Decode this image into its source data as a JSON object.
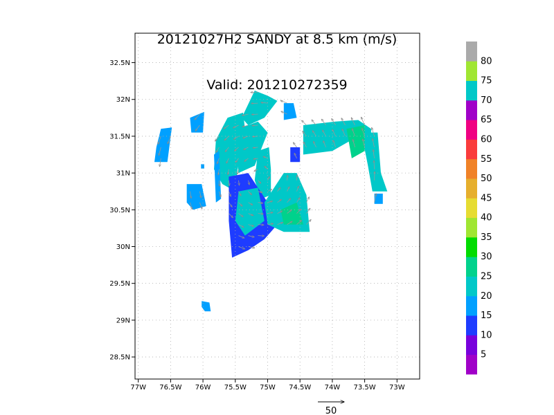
{
  "chart_data": {
    "type": "heatmap",
    "title": "20121027H2 SANDY at 8.5 km (m/s)",
    "subtitle": "Valid: 201210272359",
    "xlabel": "",
    "ylabel": "",
    "xlim": [
      -77.05,
      -72.65
    ],
    "ylim": [
      28.2,
      32.9
    ],
    "x_ticks": [
      -77,
      -76.5,
      -76,
      -75.5,
      -75,
      -74.5,
      -74,
      -73.5,
      -73
    ],
    "x_tick_labels": [
      "77W",
      "76.5W",
      "76W",
      "75.5W",
      "75W",
      "74.5W",
      "74W",
      "73.5W",
      "73W"
    ],
    "y_ticks": [
      28.5,
      29,
      29.5,
      30,
      30.5,
      31,
      31.5,
      32,
      32.5
    ],
    "y_tick_labels": [
      "28.5N",
      "29N",
      "29.5N",
      "30N",
      "30.5N",
      "31N",
      "31.5N",
      "32N",
      "32.5N"
    ],
    "grid": true,
    "vector_reference": {
      "label": "50",
      "value": 50,
      "units": "m/s"
    },
    "colorbar": {
      "labels": [
        "5",
        "10",
        "15",
        "20",
        "25",
        "30",
        "35",
        "40",
        "45",
        "50",
        "55",
        "60",
        "65",
        "70",
        "75",
        "80"
      ],
      "colors": [
        "#a000c8",
        "#7800dc",
        "#1e3cff",
        "#00a0ff",
        "#00c8c8",
        "#00d28c",
        "#00dc00",
        "#a0e632",
        "#e6dc32",
        "#e6af2d",
        "#f08228",
        "#fa3c3c",
        "#f00082",
        "#a000c8",
        "#00c8c8",
        "#a0e632",
        "#aaaaaa"
      ]
    },
    "regions": [
      {
        "name": "core-west-high",
        "value": 70,
        "polygon": [
          [
            -75.62,
            31.75
          ],
          [
            -75.38,
            31.82
          ],
          [
            -75.35,
            31.6
          ],
          [
            -75.45,
            31.2
          ],
          [
            -75.5,
            30.75
          ],
          [
            -75.7,
            30.85
          ],
          [
            -75.83,
            31.05
          ],
          [
            -75.8,
            31.45
          ]
        ]
      },
      {
        "name": "core-north-high",
        "value": 70,
        "polygon": [
          [
            -75.4,
            31.75
          ],
          [
            -75.2,
            32.12
          ],
          [
            -75.0,
            32.05
          ],
          [
            -74.85,
            31.98
          ],
          [
            -75.05,
            31.75
          ],
          [
            -75.3,
            31.65
          ]
        ]
      },
      {
        "name": "core-east-high",
        "value": 70,
        "polygon": [
          [
            -75.15,
            31.3
          ],
          [
            -74.98,
            31.35
          ],
          [
            -74.95,
            31.05
          ],
          [
            -74.95,
            30.7
          ],
          [
            -75.1,
            30.65
          ],
          [
            -75.2,
            30.9
          ]
        ]
      },
      {
        "name": "west-strip",
        "value": 16,
        "polygon": [
          [
            -75.83,
            31.25
          ],
          [
            -75.75,
            31.3
          ],
          [
            -75.72,
            30.65
          ],
          [
            -75.8,
            30.6
          ]
        ]
      },
      {
        "name": "core-center",
        "value": 20,
        "polygon": [
          [
            -75.45,
            31.6
          ],
          [
            -75.15,
            31.7
          ],
          [
            -75.0,
            31.55
          ],
          [
            -75.2,
            31.1
          ],
          [
            -75.45,
            31.0
          ],
          [
            -75.5,
            31.3
          ]
        ]
      },
      {
        "name": "south-lobe",
        "value": 13,
        "polygon": [
          [
            -75.6,
            30.95
          ],
          [
            -75.3,
            31.0
          ],
          [
            -75.0,
            30.6
          ],
          [
            -74.85,
            30.3
          ],
          [
            -75.05,
            30.1
          ],
          [
            -75.3,
            29.95
          ],
          [
            -75.55,
            29.85
          ],
          [
            -75.6,
            30.35
          ]
        ]
      },
      {
        "name": "south-lobe-inner",
        "value": 21,
        "polygon": [
          [
            -75.45,
            30.75
          ],
          [
            -75.15,
            30.8
          ],
          [
            -75.05,
            30.35
          ],
          [
            -75.35,
            30.15
          ],
          [
            -75.5,
            30.35
          ]
        ]
      },
      {
        "name": "eastern-arm",
        "value": 22,
        "polygon": [
          [
            -75.05,
            30.6
          ],
          [
            -74.75,
            31.0
          ],
          [
            -74.55,
            31.0
          ],
          [
            -74.4,
            30.7
          ],
          [
            -74.35,
            30.2
          ],
          [
            -74.75,
            30.2
          ],
          [
            -75.0,
            30.3
          ]
        ]
      },
      {
        "name": "eastern-arm-core",
        "value": 27,
        "polygon": [
          [
            -74.8,
            30.5
          ],
          [
            -74.55,
            30.6
          ],
          [
            -74.45,
            30.3
          ],
          [
            -74.75,
            30.3
          ]
        ]
      },
      {
        "name": "band-top",
        "value": 20,
        "polygon": [
          [
            -74.45,
            31.65
          ],
          [
            -73.95,
            31.7
          ],
          [
            -73.6,
            31.72
          ],
          [
            -73.4,
            31.6
          ],
          [
            -73.4,
            31.3
          ],
          [
            -73.7,
            31.45
          ],
          [
            -74.0,
            31.3
          ],
          [
            -74.45,
            31.25
          ]
        ]
      },
      {
        "name": "band-right",
        "value": 24,
        "polygon": [
          [
            -73.55,
            31.55
          ],
          [
            -73.3,
            31.55
          ],
          [
            -73.25,
            31.0
          ],
          [
            -73.15,
            30.75
          ],
          [
            -73.38,
            30.75
          ],
          [
            -73.45,
            31.1
          ]
        ]
      },
      {
        "name": "band-core",
        "value": 27,
        "polygon": [
          [
            -73.78,
            31.6
          ],
          [
            -73.5,
            31.65
          ],
          [
            -73.5,
            31.3
          ],
          [
            -73.7,
            31.2
          ]
        ]
      },
      {
        "name": "west-cell",
        "value": 15,
        "polygon": [
          [
            -76.25,
            30.85
          ],
          [
            -76.02,
            30.85
          ],
          [
            -75.95,
            30.55
          ],
          [
            -76.15,
            30.5
          ],
          [
            -76.25,
            30.6
          ]
        ]
      },
      {
        "name": "far-west-cell",
        "value": 15,
        "polygon": [
          [
            -76.65,
            31.6
          ],
          [
            -76.48,
            31.62
          ],
          [
            -76.55,
            31.15
          ],
          [
            -76.75,
            31.15
          ],
          [
            -76.72,
            31.35
          ]
        ]
      },
      {
        "name": "nw-cell",
        "value": 19,
        "polygon": [
          [
            -76.2,
            31.75
          ],
          [
            -75.98,
            31.83
          ],
          [
            -76.0,
            31.55
          ],
          [
            -76.18,
            31.55
          ]
        ]
      },
      {
        "name": "ne-cell",
        "value": 18,
        "polygon": [
          [
            -74.75,
            31.95
          ],
          [
            -74.6,
            31.95
          ],
          [
            -74.55,
            31.75
          ],
          [
            -74.75,
            31.72
          ]
        ]
      },
      {
        "name": "mid-cell",
        "value": 13,
        "polygon": [
          [
            -74.65,
            31.35
          ],
          [
            -74.5,
            31.35
          ],
          [
            -74.5,
            31.15
          ],
          [
            -74.65,
            31.15
          ]
        ]
      },
      {
        "name": "isolated-south",
        "value": 19,
        "polygon": [
          [
            -76.02,
            29.26
          ],
          [
            -75.9,
            29.24
          ],
          [
            -75.88,
            29.12
          ],
          [
            -75.97,
            29.12
          ],
          [
            -76.02,
            29.18
          ]
        ]
      },
      {
        "name": "isolated-east",
        "value": 19,
        "polygon": [
          [
            -73.35,
            30.72
          ],
          [
            -73.22,
            30.72
          ],
          [
            -73.22,
            30.58
          ],
          [
            -73.35,
            30.58
          ]
        ]
      },
      {
        "name": "small-dot",
        "value": 19,
        "polygon": [
          [
            -76.03,
            31.12
          ],
          [
            -75.98,
            31.12
          ],
          [
            -75.98,
            31.06
          ],
          [
            -76.03,
            31.06
          ]
        ]
      }
    ]
  }
}
